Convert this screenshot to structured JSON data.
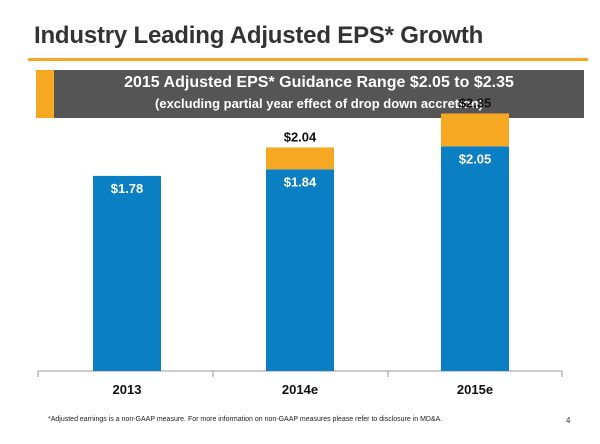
{
  "slide": {
    "title": "Industry Leading Adjusted EPS* Growth",
    "banner_line1": "2015 Adjusted EPS* Guidance Range $2.05 to $2.35",
    "banner_line2": "(excluding partial year effect of drop down accretion)",
    "footnote": "*Adjusted earnings is a non-GAAP measure. For more information on non-GAAP measures please refer to disclosure in MD&A.",
    "page_number": "4"
  },
  "colors": {
    "blue": "#0a7fc3",
    "orange": "#f7a823",
    "banner_grey": "#555555",
    "title_rule": "#f7a823"
  },
  "chart_data": {
    "type": "bar",
    "stacked": true,
    "categories": [
      "2013",
      "2014e",
      "2015e"
    ],
    "series": [
      {
        "values": [
          1.78,
          1.84,
          2.05
        ],
        "labels": [
          "$1.78",
          "$1.84",
          "$2.05"
        ],
        "color": "#0a7fc3"
      },
      {
        "values": [
          0,
          0.2,
          0.3
        ],
        "totals": [
          null,
          2.04,
          2.35
        ],
        "labels": [
          null,
          "$2.04",
          "$2.35"
        ],
        "color": "#f7a823"
      }
    ],
    "ylim": [
      0,
      2.5
    ],
    "grid": false,
    "legend": "none"
  }
}
